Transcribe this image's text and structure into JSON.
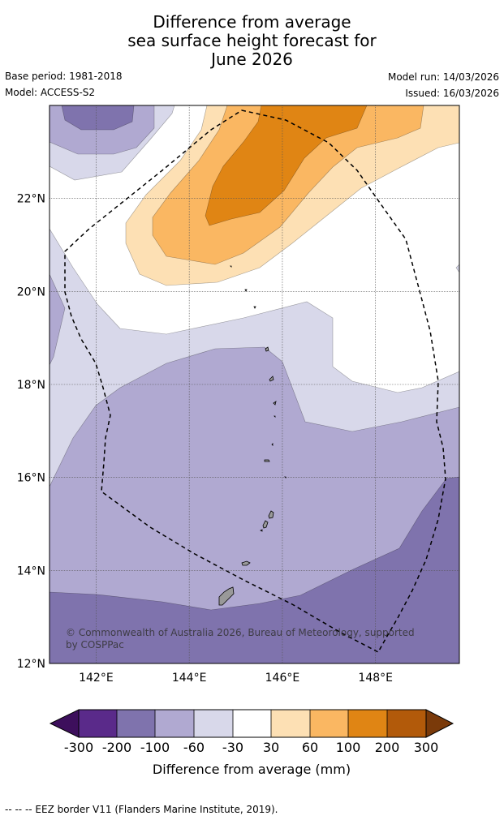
{
  "title": {
    "line1": "Difference from average",
    "line2": "sea surface height forecast for",
    "line3": "June 2026"
  },
  "meta": {
    "base_period": "Base period: 1981-2018",
    "model": "Model: ACCESS-S2",
    "model_run": "Model run: 14/03/2026",
    "issued": "Issued: 16/03/2026"
  },
  "map": {
    "lat_ticks": [
      {
        "value": 22,
        "label": "22°N"
      },
      {
        "value": 20,
        "label": "20°N"
      },
      {
        "value": 18,
        "label": "18°N"
      },
      {
        "value": 16,
        "label": "16°N"
      },
      {
        "value": 14,
        "label": "14°N"
      },
      {
        "value": 12,
        "label": "12°N"
      }
    ],
    "lon_ticks": [
      {
        "value": 142,
        "label": "142°E"
      },
      {
        "value": 144,
        "label": "144°E"
      },
      {
        "value": 146,
        "label": "146°E"
      },
      {
        "value": 148,
        "label": "148°E"
      }
    ],
    "lon_range": [
      141,
      149.8
    ],
    "lat_range": [
      12,
      24
    ],
    "copyright_line1": "© Commonwealth of Australia 2026, Bureau of Meteorology, supported",
    "copyright_line2": "by COSPPac",
    "colors": {
      "neg300": "#3d0f5c",
      "neg200": "#5a2a8a",
      "neg100": "#7f73ad",
      "neg60": "#b0a9d1",
      "neg30": "#d8d8ea",
      "neutral": "#ffffff",
      "pos30": "#fde0b4",
      "pos60": "#fab762",
      "pos100": "#e08514",
      "pos200": "#b25a0a",
      "pos300": "#7a3a0a"
    }
  },
  "colorbar": {
    "labels": [
      "-300",
      "-200",
      "-100",
      "-60",
      "-30",
      "30",
      "60",
      "100",
      "200",
      "300"
    ],
    "title": "Difference from average (mm)"
  },
  "footer": {
    "legend": "--  --  -- EEZ border V11 (Flanders Marine Institute, 2019)."
  }
}
